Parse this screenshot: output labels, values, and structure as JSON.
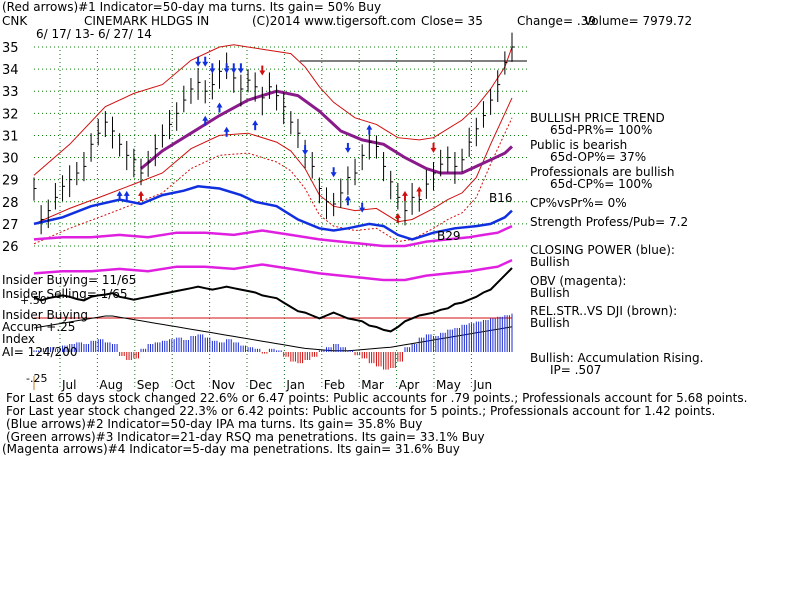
{
  "header": {
    "line1": "(Red arrows)#1 Indicator=50-day ma turns. Its gain= 50% Buy",
    "ticker": "CNK",
    "company": "CINEMARK HLDGS IN",
    "copyright": "(C)2014 www.tigersoft.com",
    "close": "Close=  35",
    "change": "Change= .39",
    "volume": "Volume= 7979.72",
    "date_range": "6/ 17/ 13- 6/ 27/ 14"
  },
  "labels": {
    "insider_buying": "Insider Buying= 11/65",
    "insider_selling": "Insider Selling= 1/65",
    "accum_plus_50": "+.50",
    "insider_buying_2": "Insider Buying",
    "accum_plus_25": "Accum  +.25",
    "index": "Index",
    "ai": "AI= 124/200",
    "accum_minus_25": "-.25"
  },
  "sidebar": [
    "BULLISH PRICE TREND",
    "65d-PR%= 100%",
    "Public is bearish",
    "65d-OP%= 37%",
    "Professionals are bullish",
    "65d-CP%= 100%",
    "CP%vsPr%=  0%",
    "Strength Profess/Pub= 7.2",
    "CLOSING POWER (blue):",
    "Bullish",
    "OBV (magenta):",
    "Bullish",
    "REL.STR..VS DJI (brown):",
    "Bullish",
    "Bullish: Accumulation Rising.",
    "IP=  .507"
  ],
  "footer": [
    "For Last 65 days stock changed  22.6% or  6.47 points:  Public accounts for  .79 points.;  Professionals account for  5.68 points.",
    "For Last year stock changed  22.3% or  6.42 points:  Public accounts for  5 points.;  Professionals account for  1.42 points.",
    "(Blue arrows)#2 Indicator=50-day IPA ma turns. Its gain= 35.8% Buy",
    "(Green arrows)#3 Indicator=21-day RSQ ma penetrations. Its gain= 33.1% Buy",
    "(Magenta arrows)#4 Indicator=5-day ma penetrations. Its gain= 31.6% Buy"
  ],
  "chart_data": {
    "type": "candlestick",
    "x_range": [
      "2013-06-17",
      "2014-06-27"
    ],
    "months": [
      "Jul",
      "Aug",
      "Sep",
      "Oct",
      "Nov",
      "Dec",
      "Jan",
      "Feb",
      "Mar",
      "Apr",
      "May",
      "Jun"
    ],
    "y_ticks": [
      26,
      27,
      28,
      29,
      30,
      31,
      32,
      33,
      34,
      35
    ],
    "ylim": [
      25.5,
      35.2
    ],
    "grid": true,
    "closes": [
      [
        0,
        28.6
      ],
      [
        1,
        27.2
      ],
      [
        2,
        27.6
      ],
      [
        3,
        28.2
      ],
      [
        4,
        28.7
      ],
      [
        5,
        29.0
      ],
      [
        6,
        29.3
      ],
      [
        7,
        29.6
      ],
      [
        8,
        30.6
      ],
      [
        9,
        31.1
      ],
      [
        10,
        31.6
      ],
      [
        11,
        31.2
      ],
      [
        12,
        30.6
      ],
      [
        13,
        30.1
      ],
      [
        14,
        29.9
      ],
      [
        15,
        29.3
      ],
      [
        16,
        29.8
      ],
      [
        17,
        30.4
      ],
      [
        18,
        31.0
      ],
      [
        19,
        31.5
      ],
      [
        20,
        32.0
      ],
      [
        21,
        32.6
      ],
      [
        22,
        33.1
      ],
      [
        23,
        33.4
      ],
      [
        24,
        33.0
      ],
      [
        25,
        33.3
      ],
      [
        26,
        33.9
      ],
      [
        27,
        34.1
      ],
      [
        28,
        33.6
      ],
      [
        29,
        33.1
      ],
      [
        30,
        33.5
      ],
      [
        31,
        33.2
      ],
      [
        32,
        32.7
      ],
      [
        33,
        33.2
      ],
      [
        34,
        32.8
      ],
      [
        35,
        32.3
      ],
      [
        36,
        31.6
      ],
      [
        37,
        31.1
      ],
      [
        38,
        30.3
      ],
      [
        39,
        29.6
      ],
      [
        40,
        28.6
      ],
      [
        41,
        28.0
      ],
      [
        42,
        27.9
      ],
      [
        43,
        28.4
      ],
      [
        44,
        29.1
      ],
      [
        45,
        29.3
      ],
      [
        46,
        30.1
      ],
      [
        47,
        30.7
      ],
      [
        48,
        30.5
      ],
      [
        49,
        29.6
      ],
      [
        50,
        28.9
      ],
      [
        51,
        28.2
      ],
      [
        52,
        27.6
      ],
      [
        53,
        28.2
      ],
      [
        54,
        28.1
      ],
      [
        55,
        28.8
      ],
      [
        56,
        29.3
      ],
      [
        57,
        29.7
      ],
      [
        58,
        30.0
      ],
      [
        59,
        29.6
      ],
      [
        60,
        29.9
      ],
      [
        61,
        30.7
      ],
      [
        62,
        31.3
      ],
      [
        63,
        31.9
      ],
      [
        64,
        32.6
      ],
      [
        65,
        33.3
      ],
      [
        66,
        34.3
      ],
      [
        67,
        35.0
      ]
    ],
    "upper_band": [
      [
        0,
        29.2
      ],
      [
        5,
        30.6
      ],
      [
        10,
        32.3
      ],
      [
        14,
        32.9
      ],
      [
        18,
        33.3
      ],
      [
        22,
        34.4
      ],
      [
        26,
        35.0
      ],
      [
        28,
        35.1
      ],
      [
        32,
        34.9
      ],
      [
        36,
        34.7
      ],
      [
        38,
        34.1
      ],
      [
        40,
        33.2
      ],
      [
        42,
        32.5
      ],
      [
        45,
        31.8
      ],
      [
        48,
        31.5
      ],
      [
        51,
        30.9
      ],
      [
        54,
        30.8
      ],
      [
        56,
        30.9
      ],
      [
        58,
        31.3
      ],
      [
        60,
        31.7
      ],
      [
        62,
        32.3
      ],
      [
        64,
        33.1
      ],
      [
        66,
        34.1
      ],
      [
        67,
        35.0
      ]
    ],
    "lower_band": [
      [
        0,
        27.0
      ],
      [
        5,
        27.7
      ],
      [
        10,
        28.3
      ],
      [
        14,
        28.8
      ],
      [
        18,
        29.3
      ],
      [
        22,
        30.4
      ],
      [
        26,
        31.0
      ],
      [
        30,
        31.1
      ],
      [
        34,
        30.7
      ],
      [
        36,
        30.3
      ],
      [
        38,
        29.5
      ],
      [
        40,
        28.3
      ],
      [
        42,
        27.8
      ],
      [
        45,
        27.6
      ],
      [
        48,
        27.7
      ],
      [
        51,
        27.1
      ],
      [
        53,
        27.2
      ],
      [
        56,
        27.7
      ],
      [
        58,
        28.1
      ],
      [
        60,
        28.4
      ],
      [
        62,
        29.1
      ],
      [
        64,
        30.6
      ],
      [
        66,
        32.0
      ],
      [
        67,
        32.7
      ]
    ],
    "ma_50_purple": [
      [
        15,
        29.5
      ],
      [
        18,
        30.3
      ],
      [
        22,
        31.1
      ],
      [
        26,
        31.9
      ],
      [
        30,
        32.6
      ],
      [
        34,
        33.0
      ],
      [
        37,
        32.8
      ],
      [
        40,
        32.1
      ],
      [
        43,
        31.2
      ],
      [
        46,
        30.8
      ],
      [
        49,
        30.6
      ],
      [
        52,
        30.0
      ],
      [
        55,
        29.5
      ],
      [
        57,
        29.3
      ],
      [
        60,
        29.3
      ],
      [
        62,
        29.6
      ],
      [
        64,
        29.9
      ],
      [
        66,
        30.2
      ],
      [
        67,
        30.5
      ]
    ],
    "closing_power_blue": [
      [
        0,
        27.0
      ],
      [
        4,
        27.3
      ],
      [
        8,
        27.8
      ],
      [
        12,
        28.1
      ],
      [
        15,
        27.9
      ],
      [
        18,
        28.3
      ],
      [
        21,
        28.5
      ],
      [
        23,
        28.7
      ],
      [
        26,
        28.6
      ],
      [
        29,
        28.3
      ],
      [
        31,
        28.0
      ],
      [
        34,
        27.8
      ],
      [
        37,
        27.2
      ],
      [
        40,
        26.8
      ],
      [
        42,
        26.7
      ],
      [
        44,
        26.8
      ],
      [
        47,
        27.0
      ],
      [
        49,
        26.9
      ],
      [
        51,
        26.5
      ],
      [
        53,
        26.3
      ],
      [
        56,
        26.6
      ],
      [
        59,
        26.8
      ],
      [
        62,
        26.9
      ],
      [
        64,
        27.0
      ],
      [
        66,
        27.3
      ],
      [
        67,
        27.6
      ]
    ],
    "obv_magenta": [
      [
        0,
        26.3
      ],
      [
        4,
        26.4
      ],
      [
        8,
        26.4
      ],
      [
        12,
        26.5
      ],
      [
        16,
        26.4
      ],
      [
        20,
        26.6
      ],
      [
        24,
        26.6
      ],
      [
        28,
        26.5
      ],
      [
        32,
        26.7
      ],
      [
        36,
        26.5
      ],
      [
        40,
        26.3
      ],
      [
        43,
        26.2
      ],
      [
        46,
        26.1
      ],
      [
        49,
        26.0
      ],
      [
        52,
        26.0
      ],
      [
        55,
        26.2
      ],
      [
        58,
        26.3
      ],
      [
        61,
        26.4
      ],
      [
        63,
        26.5
      ],
      [
        65,
        26.6
      ],
      [
        67,
        26.9
      ]
    ],
    "markers": [
      {
        "label": "B16",
        "day": 64,
        "price": 29.2
      },
      {
        "label": "B29",
        "day": 53,
        "price": 27.4
      }
    ],
    "arrows": [
      {
        "type": "blue-down",
        "day": 23,
        "price": 34.2
      },
      {
        "type": "blue-down",
        "day": 24,
        "price": 34.2
      },
      {
        "type": "blue-down",
        "day": 25,
        "price": 33.9
      },
      {
        "type": "blue-down",
        "day": 27,
        "price": 33.9
      },
      {
        "type": "blue-down",
        "day": 28,
        "price": 33.9
      },
      {
        "type": "blue-down",
        "day": 29,
        "price": 33.9
      },
      {
        "type": "red-down",
        "day": 32,
        "price": 33.8
      },
      {
        "type": "blue-up",
        "day": 24,
        "price": 31.8
      },
      {
        "type": "blue-up",
        "day": 26,
        "price": 32.4
      },
      {
        "type": "blue-up",
        "day": 27,
        "price": 31.3
      },
      {
        "type": "blue-up",
        "day": 31,
        "price": 31.6
      },
      {
        "type": "blue-up",
        "day": 12,
        "price": 28.4
      },
      {
        "type": "blue-up",
        "day": 13,
        "price": 28.4
      },
      {
        "type": "red-up",
        "day": 15,
        "price": 28.4
      },
      {
        "type": "blue-down",
        "day": 38,
        "price": 30.2
      },
      {
        "type": "blue-down",
        "day": 42,
        "price": 29.2
      },
      {
        "type": "blue-down",
        "day": 44,
        "price": 30.3
      },
      {
        "type": "blue-up",
        "day": 47,
        "price": 31.4
      },
      {
        "type": "blue-down",
        "day": 46,
        "price": 27.6
      },
      {
        "type": "blue-up",
        "day": 44,
        "price": 28.2
      },
      {
        "type": "red-up",
        "day": 52,
        "price": 28.4
      },
      {
        "type": "red-up",
        "day": 54,
        "price": 28.6
      },
      {
        "type": "red-down",
        "day": 56,
        "price": 30.3
      },
      {
        "type": "red-up",
        "day": 51,
        "price": 27.4
      }
    ],
    "accumulation_index": [
      0.02,
      0.05,
      0.06,
      0.04,
      0.08,
      0.1,
      0.12,
      0.1,
      0.14,
      0.16,
      0.12,
      0.1,
      -0.05,
      -0.1,
      -0.08,
      0.04,
      0.1,
      0.12,
      0.14,
      0.16,
      0.18,
      0.15,
      0.2,
      0.22,
      0.18,
      0.14,
      0.12,
      0.16,
      0.12,
      0.08,
      0.06,
      0.04,
      -0.02,
      0.04,
      0.02,
      -0.06,
      -0.12,
      -0.14,
      -0.1,
      -0.06,
      0.02,
      0.06,
      0.1,
      0.06,
      0.02,
      -0.04,
      -0.08,
      -0.14,
      -0.18,
      -0.22,
      -0.2,
      -0.12,
      0.06,
      0.1,
      0.18,
      0.22,
      0.2,
      0.24,
      0.28,
      0.3,
      0.34,
      0.36,
      0.38,
      0.4,
      0.42,
      0.44,
      0.46,
      0.48
    ],
    "obv_panel": [
      0.6,
      0.55,
      0.58,
      0.6,
      0.62,
      0.6,
      0.57,
      0.55,
      0.6,
      0.62,
      0.63,
      0.65,
      0.6,
      0.58,
      0.56,
      0.58,
      0.6,
      0.62,
      0.64,
      0.66,
      0.68,
      0.7,
      0.72,
      0.74,
      0.72,
      0.7,
      0.72,
      0.74,
      0.72,
      0.7,
      0.68,
      0.66,
      0.62,
      0.6,
      0.58,
      0.52,
      0.46,
      0.4,
      0.38,
      0.34,
      0.3,
      0.34,
      0.38,
      0.34,
      0.3,
      0.28,
      0.26,
      0.2,
      0.18,
      0.14,
      0.12,
      0.18,
      0.26,
      0.3,
      0.34,
      0.36,
      0.38,
      0.42,
      0.44,
      0.5,
      0.52,
      0.56,
      0.6,
      0.66,
      0.7,
      0.8,
      0.9,
      1.0
    ],
    "brown_rs": [
      0.5,
      0.52,
      0.54,
      0.56,
      0.58,
      0.6,
      0.62,
      0.64,
      0.66,
      0.68,
      0.7,
      0.7,
      0.68,
      0.66,
      0.64,
      0.62,
      0.6,
      0.58,
      0.56,
      0.54,
      0.52,
      0.5,
      0.48,
      0.46,
      0.44,
      0.42,
      0.4,
      0.38,
      0.36,
      0.34,
      0.32,
      0.3,
      0.28,
      0.26,
      0.24,
      0.22,
      0.2,
      0.18,
      0.16,
      0.15,
      0.14,
      0.13,
      0.12,
      0.12,
      0.12,
      0.13,
      0.14,
      0.15,
      0.16,
      0.17,
      0.18,
      0.2,
      0.22,
      0.24,
      0.26,
      0.28,
      0.3,
      0.32,
      0.34,
      0.36,
      0.38,
      0.4,
      0.42,
      0.44,
      0.46,
      0.48,
      0.5,
      0.52
    ],
    "colors": {
      "closing_power": "#1030e0",
      "obv": "#e020e0",
      "moving_average": "#8a1a8a",
      "bands": "#d01010",
      "grid": "#0a7a0a",
      "arrow_blue": "#1030e0",
      "arrow_red": "#d01010",
      "accum_up": "#1a2ad0",
      "accum_down": "#d01010",
      "black": "#000000"
    }
  }
}
